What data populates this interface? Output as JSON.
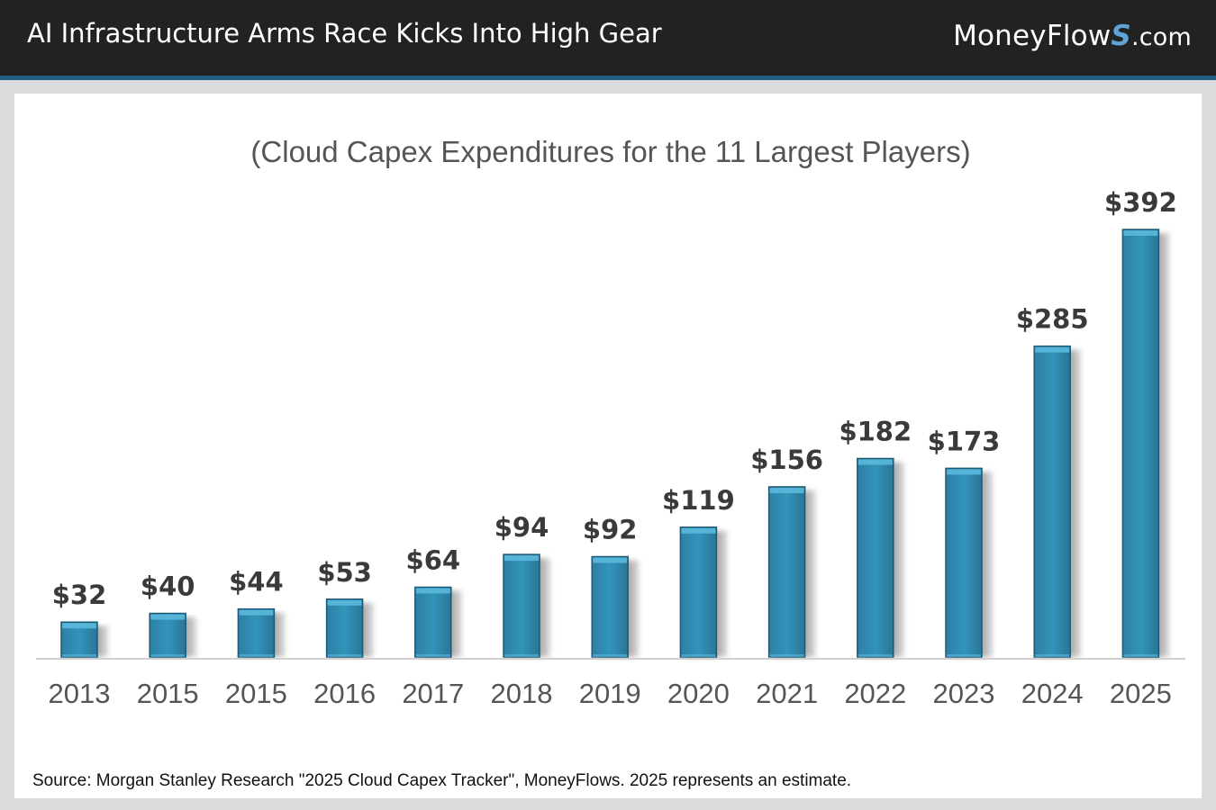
{
  "header": {
    "title": "AI Infrastructure Arms Race Kicks Into High Gear",
    "brand": {
      "name": "MoneyFlow",
      "mark": "S",
      "suffix": ".com"
    }
  },
  "chart_data": {
    "type": "bar",
    "title": "(Cloud Capex Expenditures for the 11 Largest Players)",
    "xlabel": "",
    "ylabel": "",
    "categories": [
      "2013",
      "2015",
      "2015",
      "2016",
      "2017",
      "2018",
      "2019",
      "2020",
      "2021",
      "2022",
      "2023",
      "2024",
      "2025"
    ],
    "values": [
      32,
      40,
      44,
      53,
      64,
      94,
      92,
      119,
      156,
      182,
      173,
      285,
      392
    ],
    "data_labels": [
      "$32",
      "$40",
      "$44",
      "$53",
      "$64",
      "$94",
      "$92",
      "$119",
      "$156",
      "$182",
      "$173",
      "$285",
      "$392"
    ],
    "ylim": [
      0,
      392
    ],
    "grid": false,
    "legend": "none",
    "colors": {
      "bar": "#2e8bb0",
      "bar_top": "#5ab9dc",
      "shadow": "#8f8f8f",
      "label": "#3a3a3a",
      "axis": "#d0d0d0",
      "tick": "#555555",
      "title": "#555555"
    }
  },
  "footer": {
    "source": "Source: Morgan Stanley Research \"2025 Cloud Capex Tracker\", MoneyFlows. 2025 represents an estimate."
  }
}
